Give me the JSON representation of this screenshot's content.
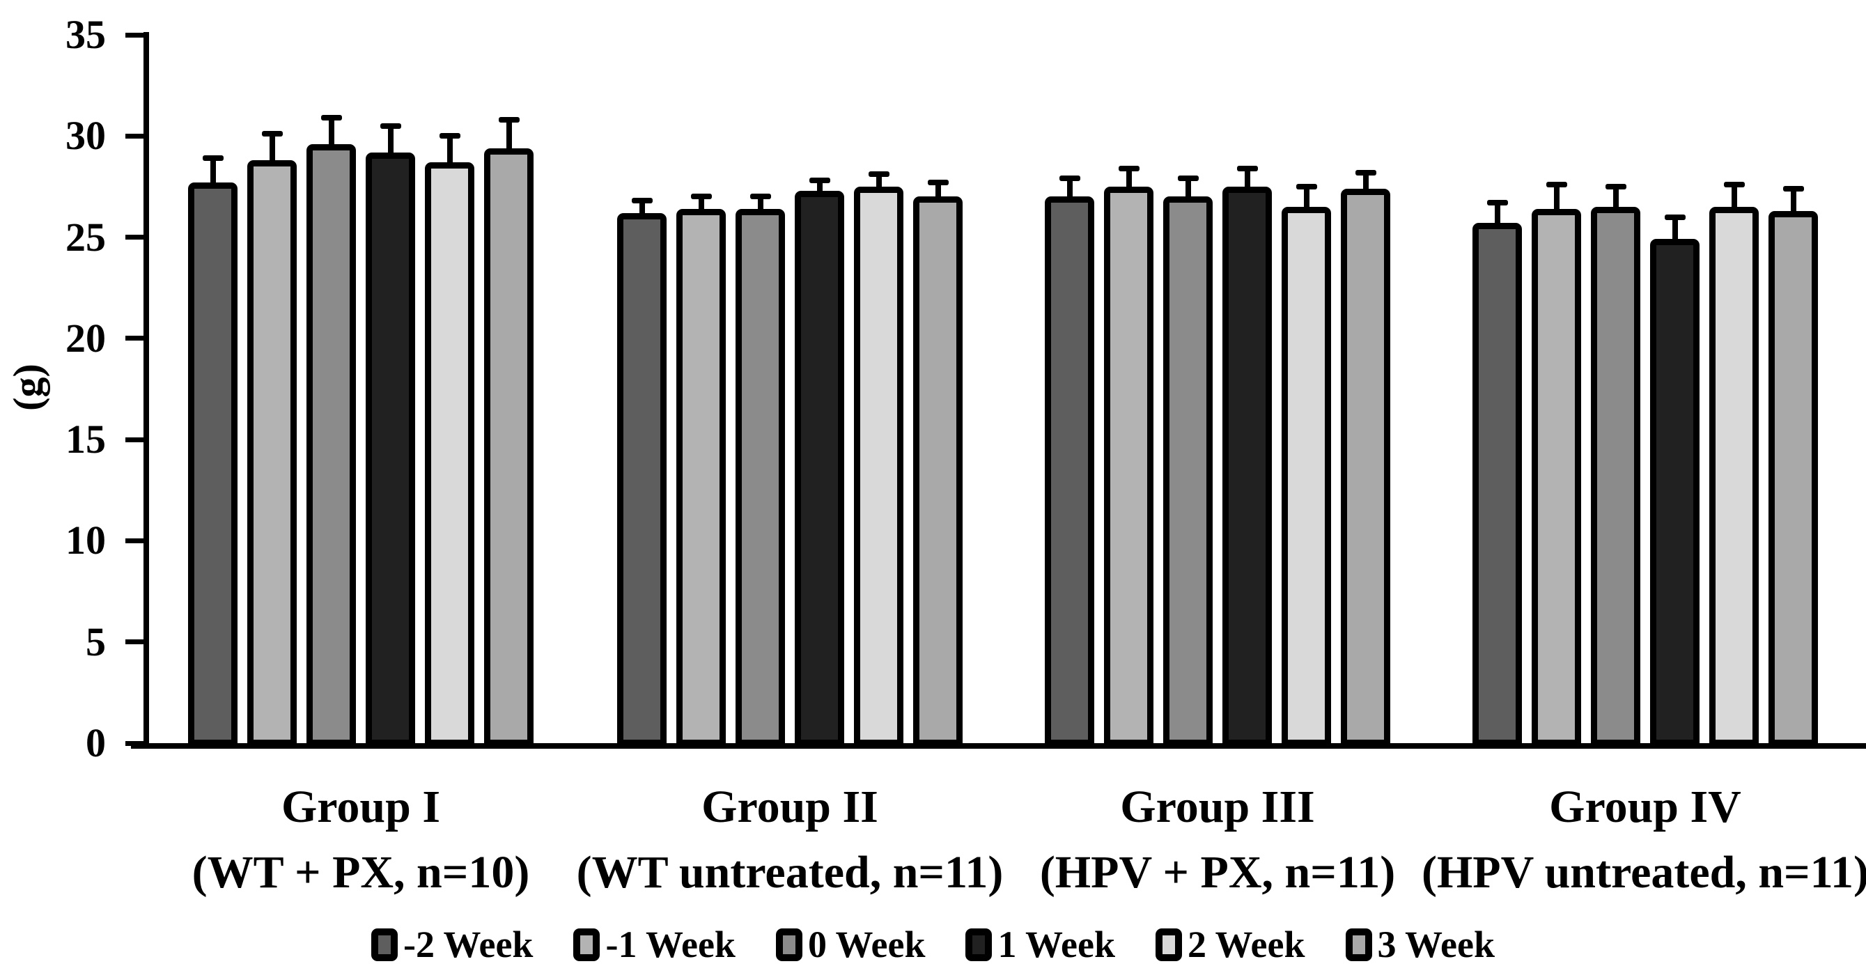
{
  "chart_data": {
    "type": "bar",
    "title": "",
    "xlabel": "",
    "ylabel": "(g)",
    "ylim": [
      0,
      35
    ],
    "yticks": [
      0,
      5,
      10,
      15,
      20,
      25,
      30,
      35
    ],
    "grid": false,
    "legend_position": "bottom",
    "error_bars": "upper-only",
    "bar_outline_color": "#000000",
    "background_color": "#ffffff",
    "categories": [
      {
        "line1": "Group I",
        "line2": "(WT + PX, n=10)"
      },
      {
        "line1": "Group II",
        "line2": "(WT untreated, n=11)"
      },
      {
        "line1": "Group III",
        "line2": "(HPV + PX, n=11)"
      },
      {
        "line1": "Group IV",
        "line2": "(HPV untreated, n=11)"
      }
    ],
    "series": [
      {
        "name": "-2 Week",
        "color": "#5e5e5e",
        "values": [
          27.7,
          26.2,
          27.0,
          25.7
        ],
        "errors": [
          1.2,
          0.6,
          0.9,
          1.0
        ]
      },
      {
        "name": "-1 Week",
        "color": "#b3b3b3",
        "values": [
          28.8,
          26.4,
          27.5,
          26.4
        ],
        "errors": [
          1.3,
          0.6,
          0.9,
          1.2
        ]
      },
      {
        "name": "0 Week",
        "color": "#8b8b8b",
        "values": [
          29.6,
          26.4,
          27.0,
          26.5
        ],
        "errors": [
          1.3,
          0.6,
          0.9,
          1.0
        ]
      },
      {
        "name": "1 Week",
        "color": "#212121",
        "values": [
          29.2,
          27.3,
          27.5,
          24.9
        ],
        "errors": [
          1.3,
          0.5,
          0.9,
          1.1
        ]
      },
      {
        "name": "2 Week",
        "color": "#d9d9d9",
        "values": [
          28.7,
          27.5,
          26.5,
          26.5
        ],
        "errors": [
          1.3,
          0.6,
          1.0,
          1.1
        ]
      },
      {
        "name": "3 Week",
        "color": "#a9a9a9",
        "values": [
          29.4,
          27.0,
          27.4,
          26.3
        ],
        "errors": [
          1.4,
          0.7,
          0.8,
          1.1
        ]
      }
    ]
  }
}
